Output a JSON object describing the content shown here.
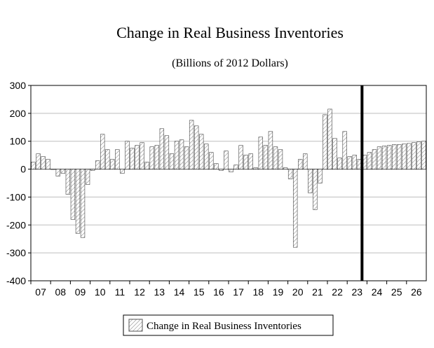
{
  "chart_data": {
    "type": "bar",
    "title": "Change in Real Business Inventories",
    "subtitle": "(Billions of 2012 Dollars)",
    "xlabel": "",
    "ylabel": "",
    "ylim": [
      -400,
      300
    ],
    "yticks": [
      "300",
      "200",
      "100",
      "0",
      "-100",
      "-200",
      "-300",
      "-400"
    ],
    "ytick_values": [
      300,
      200,
      100,
      0,
      -100,
      -200,
      -300,
      -400
    ],
    "xticks": [
      "07",
      "08",
      "09",
      "10",
      "11",
      "12",
      "13",
      "14",
      "15",
      "16",
      "17",
      "18",
      "19",
      "20",
      "21",
      "22",
      "23",
      "24",
      "25",
      "26"
    ],
    "grid": "horizontal",
    "legend_position": "bottom",
    "forecast_start": "2023Q4",
    "bar_color": "#ffffff",
    "hatch_color": "#777777",
    "series": [
      {
        "name": "Change in Real Business Inventories",
        "periods": [
          "2007Q1",
          "2007Q2",
          "2007Q3",
          "2007Q4",
          "2008Q1",
          "2008Q2",
          "2008Q3",
          "2008Q4",
          "2009Q1",
          "2009Q2",
          "2009Q3",
          "2009Q4",
          "2010Q1",
          "2010Q2",
          "2010Q3",
          "2010Q4",
          "2011Q1",
          "2011Q2",
          "2011Q3",
          "2011Q4",
          "2012Q1",
          "2012Q2",
          "2012Q3",
          "2012Q4",
          "2013Q1",
          "2013Q2",
          "2013Q3",
          "2013Q4",
          "2014Q1",
          "2014Q2",
          "2014Q3",
          "2014Q4",
          "2015Q1",
          "2015Q2",
          "2015Q3",
          "2015Q4",
          "2016Q1",
          "2016Q2",
          "2016Q3",
          "2016Q4",
          "2017Q1",
          "2017Q2",
          "2017Q3",
          "2017Q4",
          "2018Q1",
          "2018Q2",
          "2018Q3",
          "2018Q4",
          "2019Q1",
          "2019Q2",
          "2019Q3",
          "2019Q4",
          "2020Q1",
          "2020Q2",
          "2020Q3",
          "2020Q4",
          "2021Q1",
          "2021Q2",
          "2021Q3",
          "2021Q4",
          "2022Q1",
          "2022Q2",
          "2022Q3",
          "2022Q4",
          "2023Q1",
          "2023Q2",
          "2023Q3",
          "2023Q4",
          "2024Q1",
          "2024Q2",
          "2024Q3",
          "2024Q4",
          "2025Q1",
          "2025Q2",
          "2025Q3",
          "2025Q4",
          "2026Q1",
          "2026Q2",
          "2026Q3",
          "2026Q4"
        ],
        "values": [
          25,
          55,
          45,
          35,
          0,
          -25,
          -15,
          -90,
          -180,
          -230,
          -245,
          -55,
          -5,
          30,
          125,
          70,
          35,
          70,
          -15,
          100,
          75,
          85,
          95,
          25,
          80,
          85,
          145,
          120,
          55,
          100,
          105,
          80,
          175,
          155,
          125,
          90,
          60,
          20,
          -5,
          65,
          -10,
          15,
          85,
          50,
          55,
          5,
          115,
          85,
          135,
          80,
          70,
          5,
          -35,
          -280,
          35,
          55,
          -85,
          -145,
          -50,
          195,
          215,
          110,
          40,
          135,
          45,
          50,
          35,
          50,
          60,
          70,
          80,
          83,
          85,
          88,
          88,
          90,
          92,
          95,
          98,
          100
        ]
      }
    ]
  },
  "legend": {
    "label": "Change in Real Business Inventories"
  }
}
